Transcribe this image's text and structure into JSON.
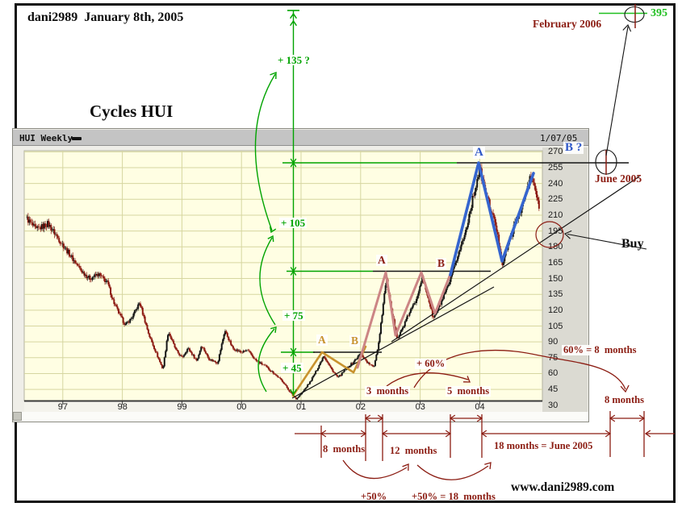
{
  "page": {
    "header": "dani2989  January 8th, 2005",
    "title": "Cycles HUI",
    "watermark": "www.dani2989.com"
  },
  "window": {
    "title": "HUI Weekly",
    "date": "1/07/05"
  },
  "chart_data": {
    "type": "candlestick",
    "instrument": "HUI Weekly",
    "as_of": "1/07/05",
    "x_ticks": [
      "97",
      "98",
      "99",
      "00",
      "01",
      "02",
      "03",
      "04"
    ],
    "y_ticks": [
      270,
      255,
      240,
      225,
      210,
      195,
      180,
      165,
      150,
      135,
      120,
      105,
      90,
      75,
      60,
      45,
      30
    ],
    "ylim": [
      30,
      270
    ],
    "grid": true,
    "price_path_year_close": [
      [
        96.38,
        208
      ],
      [
        96.55,
        196
      ],
      [
        96.75,
        202
      ],
      [
        96.95,
        186
      ],
      [
        97.15,
        170
      ],
      [
        97.3,
        158
      ],
      [
        97.45,
        150
      ],
      [
        97.6,
        154
      ],
      [
        97.75,
        146
      ],
      [
        97.85,
        128
      ],
      [
        97.95,
        116
      ],
      [
        98.05,
        106
      ],
      [
        98.15,
        112
      ],
      [
        98.29,
        127
      ],
      [
        98.45,
        96
      ],
      [
        98.68,
        64
      ],
      [
        98.77,
        100
      ],
      [
        98.9,
        82
      ],
      [
        99.0,
        75
      ],
      [
        99.1,
        84
      ],
      [
        99.25,
        72
      ],
      [
        99.33,
        87
      ],
      [
        99.45,
        74
      ],
      [
        99.6,
        70
      ],
      [
        99.72,
        101
      ],
      [
        99.85,
        84
      ],
      [
        100.0,
        80
      ],
      [
        100.1,
        82
      ],
      [
        100.25,
        72
      ],
      [
        100.4,
        67
      ],
      [
        100.55,
        60
      ],
      [
        100.7,
        52
      ],
      [
        100.82,
        42
      ],
      [
        100.92,
        36
      ],
      [
        101.02,
        42
      ],
      [
        101.15,
        52
      ],
      [
        101.25,
        62
      ],
      [
        101.38,
        77
      ],
      [
        101.5,
        65
      ],
      [
        101.62,
        56
      ],
      [
        101.75,
        64
      ],
      [
        101.88,
        71
      ],
      [
        102.0,
        79
      ],
      [
        102.12,
        70
      ],
      [
        102.22,
        66
      ],
      [
        102.3,
        88
      ],
      [
        102.43,
        150
      ],
      [
        102.52,
        118
      ],
      [
        102.62,
        93
      ],
      [
        102.72,
        105
      ],
      [
        102.82,
        118
      ],
      [
        102.92,
        128
      ],
      [
        103.03,
        151
      ],
      [
        103.12,
        135
      ],
      [
        103.22,
        112
      ],
      [
        103.35,
        127
      ],
      [
        103.5,
        147
      ],
      [
        103.62,
        170
      ],
      [
        103.75,
        192
      ],
      [
        103.88,
        225
      ],
      [
        104.0,
        254
      ],
      [
        104.08,
        235
      ],
      [
        104.17,
        218
      ],
      [
        104.27,
        200
      ],
      [
        104.38,
        164
      ],
      [
        104.48,
        183
      ],
      [
        104.6,
        203
      ],
      [
        104.72,
        220
      ],
      [
        104.85,
        246
      ],
      [
        104.92,
        238
      ],
      [
        105.0,
        214
      ]
    ],
    "key_levels": {
      "low_2000": 35,
      "wave_a_2001": 80,
      "wave_ab_2002_2003": 152,
      "wave_a_2003_peak": 255,
      "buy_zone": 195,
      "target_value": 395
    },
    "measured_moves": [
      "+ 45",
      "+ 75",
      "+ 105",
      "+ 135 ?"
    ]
  },
  "annotations": {
    "green": {
      "m135": "+ 135 ?",
      "m105": "+ 105",
      "m75": "+ 75",
      "m45": "+ 45",
      "target": "395"
    },
    "blue": {
      "wave_a": "A",
      "wave_b_q": "B ?"
    },
    "red_waves": {
      "a": "A",
      "b": "B"
    },
    "orange_waves": {
      "a": "A",
      "b": "B"
    },
    "dark_red": {
      "feb2006": "February 2006",
      "june2005": "June 2005",
      "m3": "3  months",
      "m5": "5  months",
      "p60": "+ 60%",
      "eq60": "60% = 8  months",
      "m8_right": "8 months",
      "m8": "8  months",
      "m12": "12  months",
      "m18": "18 months = June 2005",
      "p50": "+50%",
      "p50_18": "+50% = 18  months"
    },
    "buy": "Buy"
  },
  "colors": {
    "green": "#00a300",
    "dark_red": "#8b1c12",
    "blue": "#2f58c8",
    "orange": "#c8922e",
    "candle_up": "#151515",
    "candle_down": "#8c1a12",
    "plot_bg": "#fffee3",
    "grid": "#d6d6a0"
  }
}
